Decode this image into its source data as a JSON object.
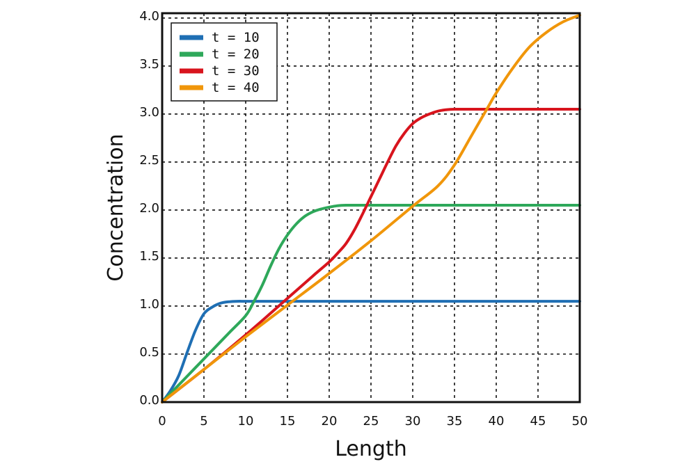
{
  "chart_data": {
    "type": "line",
    "xlabel": "Length",
    "ylabel": "Concentration",
    "xlim": [
      0,
      50
    ],
    "ylim": [
      0,
      4.05
    ],
    "xticks": [
      "0",
      "5",
      "10",
      "15",
      "20",
      "25",
      "30",
      "35",
      "40",
      "45",
      "50"
    ],
    "yticks": [
      "0.0",
      "0.5",
      "1.0",
      "1.5",
      "2.0",
      "2.5",
      "3.0",
      "3.5",
      "4.0"
    ],
    "grid": true,
    "legend_position": "top-left",
    "series": [
      {
        "name": "t  =  10",
        "color": "#1f6fb4",
        "x": [
          0,
          1,
          2,
          3,
          4,
          5,
          6,
          7,
          8,
          9,
          10,
          12,
          15,
          20,
          30,
          40,
          50
        ],
        "y": [
          0,
          0.12,
          0.28,
          0.52,
          0.75,
          0.92,
          0.99,
          1.03,
          1.045,
          1.05,
          1.05,
          1.05,
          1.05,
          1.05,
          1.05,
          1.05,
          1.05
        ]
      },
      {
        "name": "t  =  20",
        "color": "#2ea85a",
        "x": [
          0,
          2,
          4,
          6,
          8,
          10,
          11,
          12,
          13,
          14,
          15,
          16,
          17,
          18,
          19,
          20,
          21,
          22,
          24,
          30,
          40,
          50
        ],
        "y": [
          0,
          0.18,
          0.36,
          0.54,
          0.72,
          0.9,
          1.05,
          1.22,
          1.42,
          1.6,
          1.74,
          1.85,
          1.93,
          1.98,
          2.01,
          2.03,
          2.045,
          2.05,
          2.05,
          2.05,
          2.05,
          2.05
        ]
      },
      {
        "name": "t  =  30",
        "color": "#d8141d",
        "x": [
          0,
          5,
          10,
          15,
          18,
          20,
          21,
          22,
          23,
          24,
          25,
          26,
          27,
          28,
          29,
          30,
          31,
          32,
          33,
          34,
          35,
          36,
          38,
          40,
          50
        ],
        "y": [
          0,
          0.34,
          0.7,
          1.08,
          1.31,
          1.46,
          1.55,
          1.65,
          1.79,
          1.96,
          2.14,
          2.32,
          2.5,
          2.67,
          2.8,
          2.9,
          2.96,
          3.0,
          3.03,
          3.045,
          3.05,
          3.05,
          3.05,
          3.05,
          3.05
        ]
      },
      {
        "name": "t  =  40",
        "color": "#f0960a",
        "x": [
          0,
          5,
          10,
          15,
          20,
          25,
          30,
          33,
          35,
          37,
          39,
          40,
          42,
          44,
          46,
          48,
          50
        ],
        "y": [
          0,
          0.34,
          0.68,
          1.01,
          1.34,
          1.68,
          2.04,
          2.25,
          2.47,
          2.77,
          3.07,
          3.22,
          3.48,
          3.7,
          3.85,
          3.96,
          4.03
        ]
      }
    ]
  }
}
